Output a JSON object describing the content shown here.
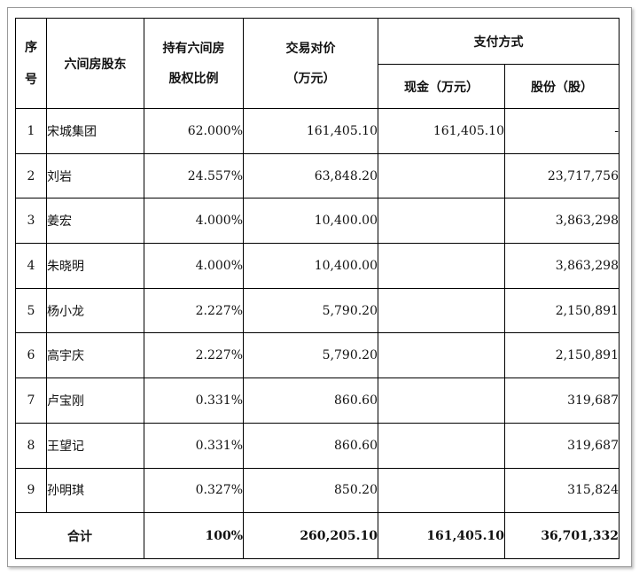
{
  "headers": {
    "seq": [
      "序",
      "号"
    ],
    "holder": "六间房股东",
    "ratio": [
      "持有六间房",
      "股权比例"
    ],
    "price": [
      "交易对价",
      "（万元）"
    ],
    "payment": "支付方式",
    "cash": "现金（万元）",
    "shares": "股份（股）"
  },
  "rows": [
    {
      "no": "1",
      "name": "宋城集团",
      "ratio": "62.000%",
      "price": "161,405.10",
      "cash": "161,405.10",
      "shares": "-"
    },
    {
      "no": "2",
      "name": "刘岩",
      "ratio": "24.557%",
      "price": "63,848.20",
      "cash": "",
      "shares": "23,717,756"
    },
    {
      "no": "3",
      "name": "姜宏",
      "ratio": "4.000%",
      "price": "10,400.00",
      "cash": "",
      "shares": "3,863,298"
    },
    {
      "no": "4",
      "name": "朱晓明",
      "ratio": "4.000%",
      "price": "10,400.00",
      "cash": "",
      "shares": "3,863,298"
    },
    {
      "no": "5",
      "name": "杨小龙",
      "ratio": "2.227%",
      "price": "5,790.20",
      "cash": "",
      "shares": "2,150,891"
    },
    {
      "no": "6",
      "name": "高宇庆",
      "ratio": "2.227%",
      "price": "5,790.20",
      "cash": "",
      "shares": "2,150,891"
    },
    {
      "no": "7",
      "name": "卢宝刚",
      "ratio": "0.331%",
      "price": "860.60",
      "cash": "",
      "shares": "319,687"
    },
    {
      "no": "8",
      "name": "王望记",
      "ratio": "0.331%",
      "price": "860.60",
      "cash": "",
      "shares": "319,687"
    },
    {
      "no": "9",
      "name": "孙明琪",
      "ratio": "0.327%",
      "price": "850.20",
      "cash": "",
      "shares": "315,824"
    }
  ],
  "total": {
    "label": "合计",
    "ratio": "100%",
    "price": "260,205.10",
    "cash": "161,405.10",
    "shares": "36,701,332"
  }
}
